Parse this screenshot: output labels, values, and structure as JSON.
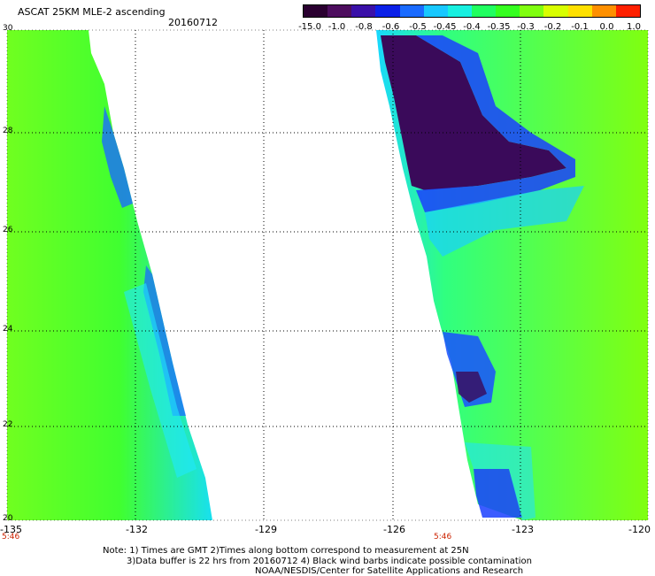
{
  "header": {
    "title": "ASCAT 25KM MLE-2 ascending",
    "date": "20160712"
  },
  "colorbar": {
    "labels": [
      "-15.0",
      "-1.0",
      "-0.8",
      "-0.6",
      "-0.5",
      "-0.45",
      "-0.4",
      "-0.35",
      "-0.3",
      "-0.2",
      "-0.1",
      "0.0",
      "1.0"
    ],
    "colors": [
      "#2a0030",
      "#4d0d5e",
      "#3a10a8",
      "#0b20e8",
      "#1a6bff",
      "#18c8ff",
      "#18f0e0",
      "#20ff60",
      "#35ff20",
      "#80ff10",
      "#d8ff00",
      "#ffe000",
      "#ff9000",
      "#ff2000"
    ]
  },
  "axes": {
    "lat_labels": [
      "30",
      "28",
      "26",
      "24",
      "22",
      "20"
    ],
    "lon_labels": [
      "-135",
      "-132",
      "-129",
      "-126",
      "-123",
      "-120"
    ],
    "time_left": "5:46",
    "time_mid": "5:46"
  },
  "notes": [
    "Note: 1) Times are GMT 2)Times along bottom correspond to measurement at 25N",
    "3)Data buffer is 22 hrs from 20160712 4) Black wind barbs indicate possible contamination",
    "NOAA/NESDIS/Center for Satellite Applications and Research"
  ],
  "colors": {
    "background": "#ffffff",
    "grid": "#000000",
    "time_label": "#cc2200"
  }
}
